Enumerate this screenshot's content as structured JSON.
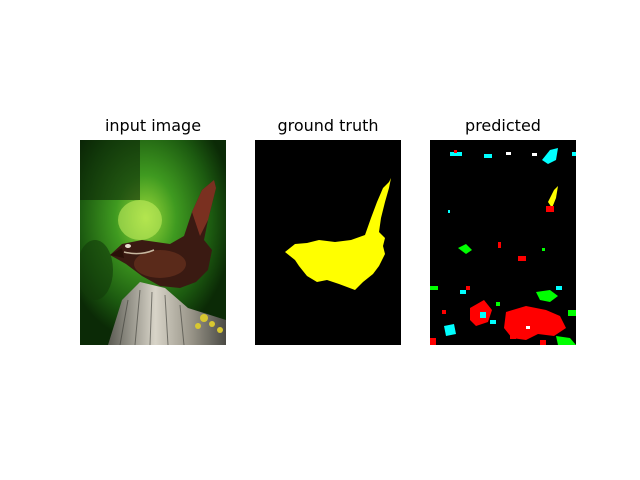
{
  "panels": {
    "input": {
      "title": "input image",
      "content": "photo of a wren perched on a weathered wooden post against a green blurred background"
    },
    "ground_truth": {
      "title": "ground truth",
      "mask_color": "#ffff00",
      "background_color": "#000000"
    },
    "predicted": {
      "title": "predicted",
      "background_color": "#000000",
      "class_colors": [
        "#ff0000",
        "#00ff00",
        "#00ffff",
        "#ffff00",
        "#ffffff"
      ]
    }
  }
}
